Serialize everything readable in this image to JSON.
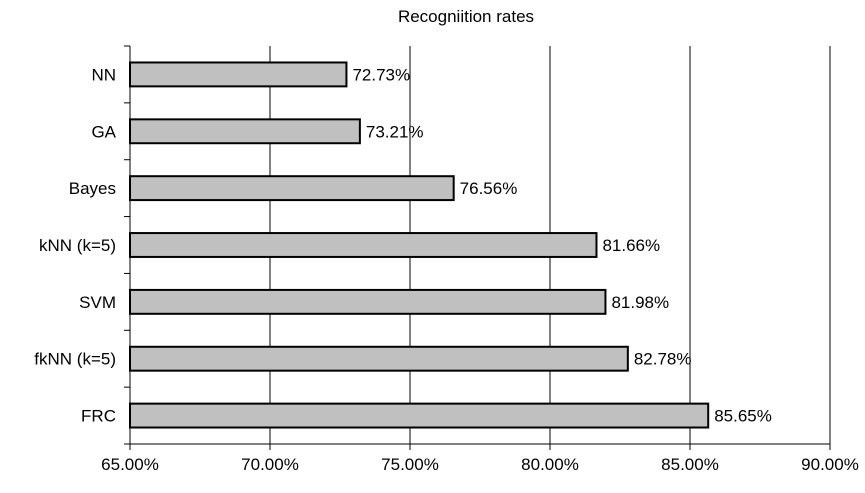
{
  "chart_data": {
    "type": "bar",
    "orientation": "horizontal",
    "title": "Recogniition rates",
    "categories": [
      "NN",
      "GA",
      "Bayes",
      "kNN (k=5)",
      "SVM",
      "fkNN (k=5)",
      "FRC"
    ],
    "values": [
      72.73,
      73.21,
      76.56,
      81.66,
      81.98,
      82.78,
      85.65
    ],
    "data_labels": [
      "72.73%",
      "73.21%",
      "76.56%",
      "81.66%",
      "81.98%",
      "82.78%",
      "85.65%"
    ],
    "xlim": [
      65,
      90
    ],
    "x_ticks": [
      65,
      70,
      75,
      80,
      85,
      90
    ],
    "x_tick_labels": [
      "65.00%",
      "70.00%",
      "75.00%",
      "80.00%",
      "85.00%",
      "90.00%"
    ],
    "xlabel": "",
    "ylabel": "",
    "grid": "vertical",
    "legend": "none",
    "colors": {
      "bar_fill": "#c0c0c0",
      "bar_stroke": "#000000",
      "grid": "#000000"
    }
  }
}
